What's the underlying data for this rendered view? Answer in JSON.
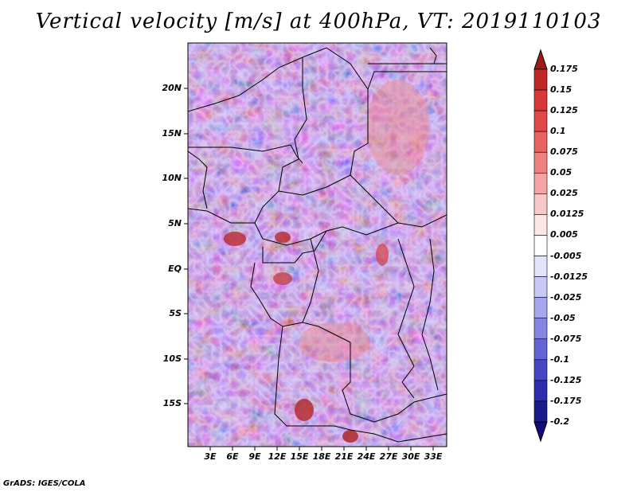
{
  "title": "Vertical velocity [m/s] at 400hPa, VT: 2019110103",
  "footer": "GrADS: IGES/COLA",
  "map": {
    "lat_labels": [
      "20N",
      "15N",
      "10N",
      "5N",
      "EQ",
      "5S",
      "10S",
      "15S"
    ],
    "lon_labels": [
      "3E",
      "6E",
      "9E",
      "12E",
      "15E",
      "18E",
      "21E",
      "24E",
      "27E",
      "30E",
      "33E"
    ]
  },
  "colorbar": {
    "labels": [
      "0.175",
      "0.15",
      "0.125",
      "0.1",
      "0.075",
      "0.05",
      "0.025",
      "0.0125",
      "0.005",
      "-0.005",
      "-0.0125",
      "-0.025",
      "-0.05",
      "-0.075",
      "-0.1",
      "-0.125",
      "-0.175",
      "-0.2"
    ],
    "colors": [
      "#a11a1a",
      "#c02828",
      "#d63838",
      "#e04848",
      "#e86262",
      "#ef8080",
      "#f4a4a4",
      "#f8c8c8",
      "#fce6e6",
      "#ffffff",
      "#e3e3fb",
      "#c8c8f6",
      "#a6a6ee",
      "#8686e2",
      "#6464d6",
      "#4646c2",
      "#2c2cac",
      "#1a1a8c",
      "#120a78"
    ]
  }
}
